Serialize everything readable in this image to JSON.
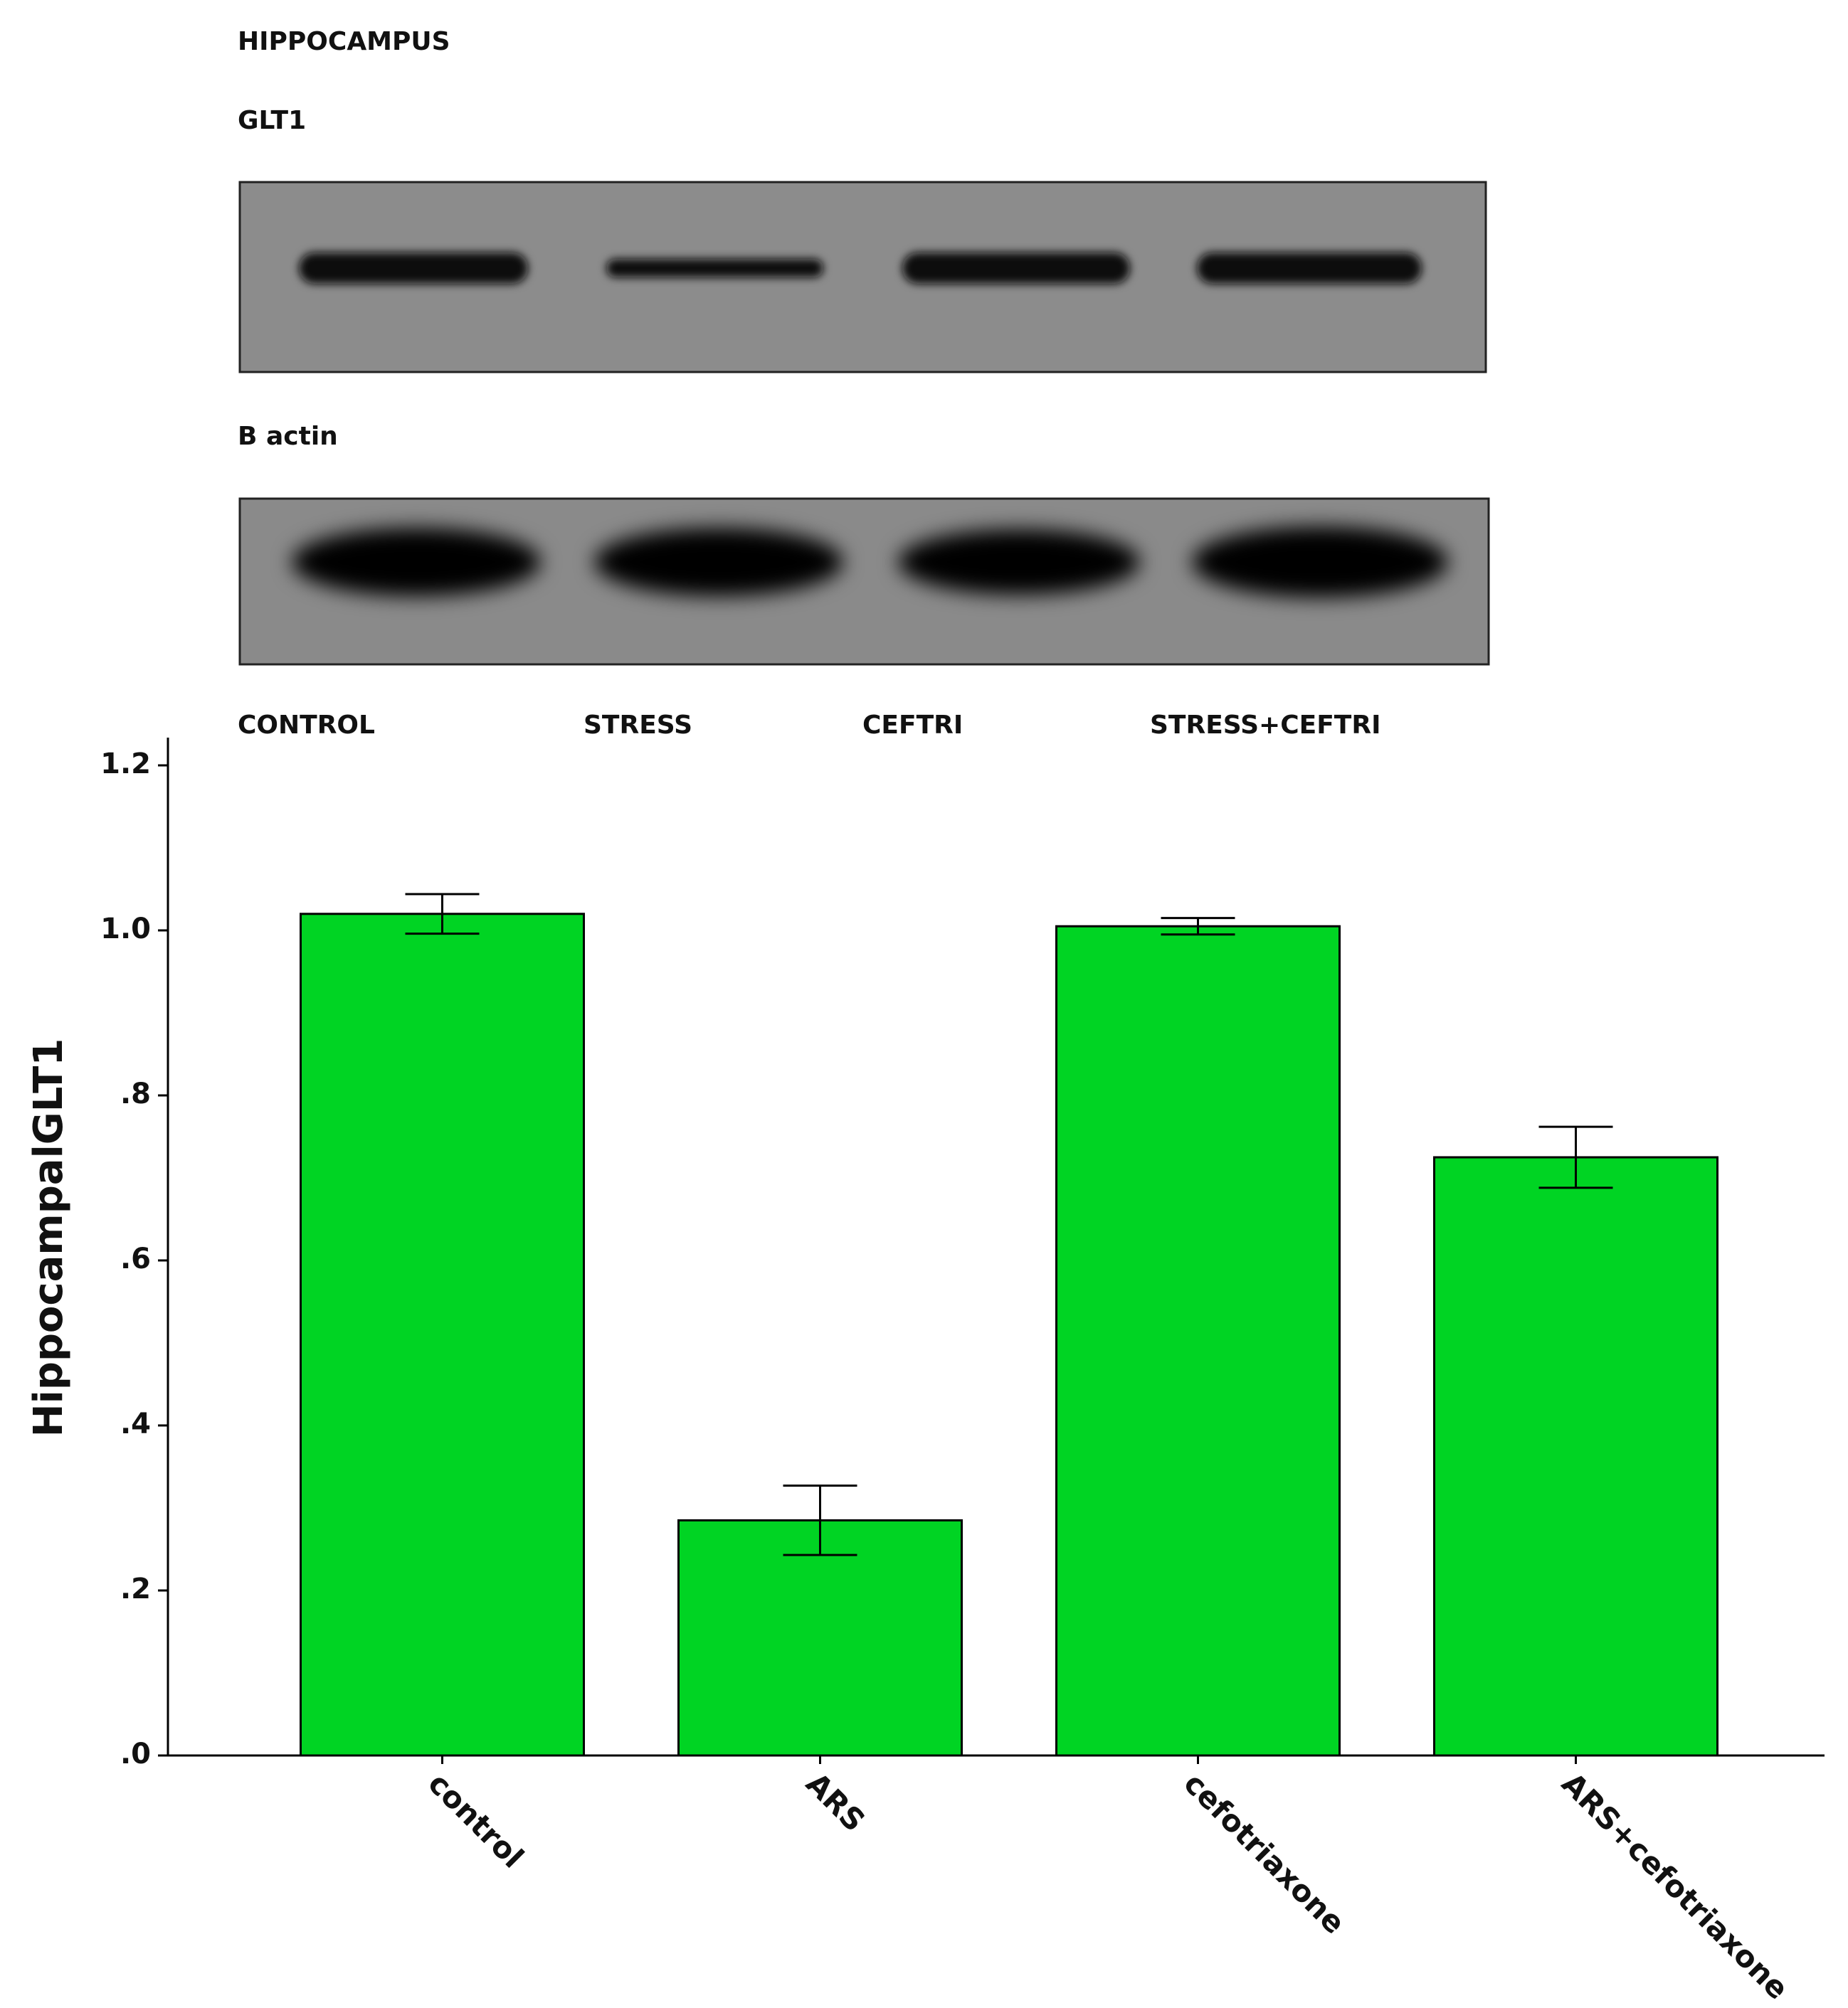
{
  "blot": {
    "region": "HIPPOCAMPUS",
    "panels": [
      "GLT1",
      "B actin"
    ],
    "lanes": [
      "CONTROL",
      "STRESS",
      "CEFTRI",
      "STRESS+CEFTRI"
    ]
  },
  "chart_data": {
    "type": "bar",
    "y_label": "HippocampalGLT1",
    "categories": [
      "control",
      "ARS",
      "cefotriaxone",
      "ARS+cefotriaxone"
    ],
    "values": [
      1.02,
      0.285,
      1.005,
      0.725
    ],
    "errors": [
      0.024,
      0.042,
      0.01,
      0.037
    ],
    "color": "#00d423",
    "ylim": [
      0,
      1.2
    ],
    "yticks": [
      {
        "value": 0,
        "label": ".0"
      },
      {
        "value": 0.2,
        "label": ".2"
      },
      {
        "value": 0.4,
        "label": ".4"
      },
      {
        "value": 0.6,
        "label": ".6"
      },
      {
        "value": 0.8,
        "label": ".8"
      },
      {
        "value": 1.0,
        "label": "1.0"
      },
      1.2
    ]
  }
}
